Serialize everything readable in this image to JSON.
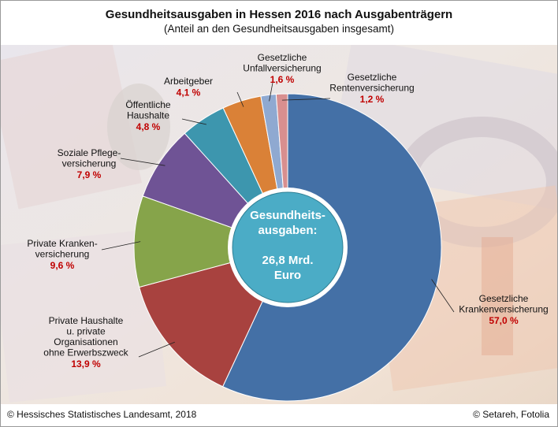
{
  "title": "Gesundheitsausgaben in Hessen 2016 nach Ausgabenträgern",
  "subtitle": "(Anteil  an den Gesundheitsausgaben insgesamt)",
  "footer": {
    "left": "© Hessisches Statistisches Landesamt,  2018",
    "right": "© Setareh,  Fotolia"
  },
  "center_label": [
    "Gesundheits-",
    "ausgaben:",
    "",
    "26,8 Mrd.",
    "Euro"
  ],
  "colors": {
    "value_text": "#c00000",
    "center_fill": "#4bacc6"
  },
  "chart_data": {
    "type": "pie",
    "variant": "donut",
    "total": "26,8 Mrd. Euro",
    "slices": [
      {
        "name": "Gesetzliche Krankenversicherung",
        "label_lines": [
          "Gesetzliche",
          "Krankenversicherung"
        ],
        "value": 57.0,
        "display": "57,0 %",
        "color": "#4470a6"
      },
      {
        "name": "Private Haushalte u. private Organisationen ohne Erwerbszweck",
        "label_lines": [
          "Private  Haushalte",
          "u. private",
          "Organisationen",
          "ohne  Erwerbszweck"
        ],
        "value": 13.9,
        "display": "13,9 %",
        "color": "#a8423f"
      },
      {
        "name": "Private Krankenversicherung",
        "label_lines": [
          "Private  Kranken-",
          "versicherung"
        ],
        "value": 9.6,
        "display": "9,6 %",
        "color": "#86a44a"
      },
      {
        "name": "Soziale Pflegeversicherung",
        "label_lines": [
          "Soziale  Pflege-",
          "versicherung"
        ],
        "value": 7.9,
        "display": "7,9 %",
        "color": "#6f5395"
      },
      {
        "name": "Öffentliche Haushalte",
        "label_lines": [
          "Öffentliche",
          "Haushalte"
        ],
        "value": 4.8,
        "display": "4,8 %",
        "color": "#3d96ae"
      },
      {
        "name": "Arbeitgeber",
        "label_lines": [
          "Arbeitgeber"
        ],
        "value": 4.1,
        "display": "4,1 %",
        "color": "#da8137"
      },
      {
        "name": "Gesetzliche Unfallversicherung",
        "label_lines": [
          "Gesetzliche",
          "Unfallversicherung"
        ],
        "value": 1.6,
        "display": "1,6 %",
        "color": "#8fa9d1"
      },
      {
        "name": "Gesetzliche Rentenversicherung",
        "label_lines": [
          "Gesetzliche",
          "Rentenversicherung"
        ],
        "value": 1.2,
        "display": "1,2 %",
        "color": "#d88f8f"
      }
    ],
    "start_angle": "top (12 o'clock)",
    "direction": "clockwise",
    "legend": "none (callout labels)"
  }
}
